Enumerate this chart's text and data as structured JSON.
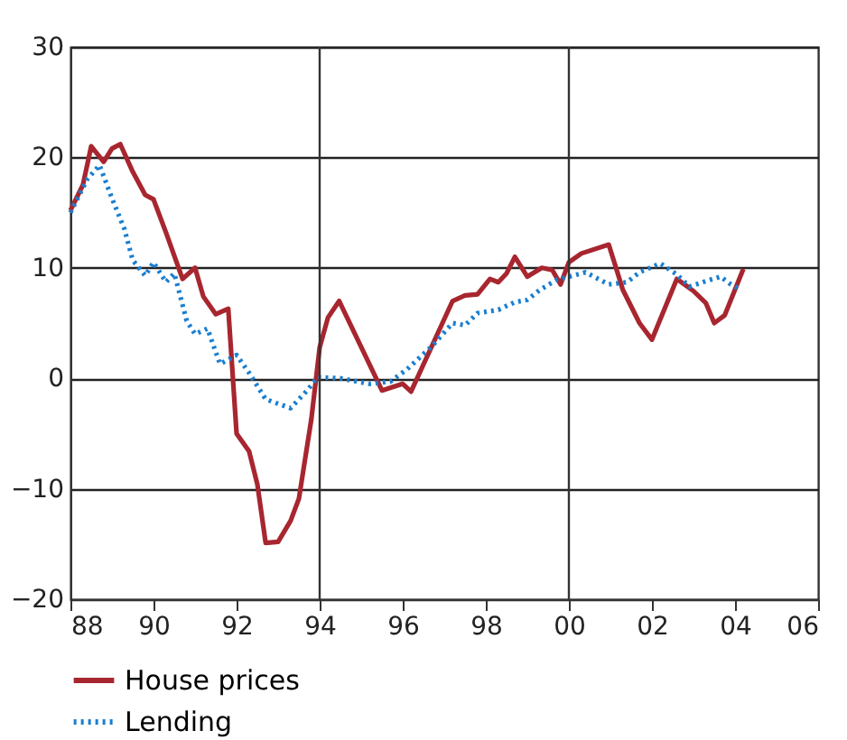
{
  "chart_data": {
    "type": "line",
    "xlim": [
      1988,
      2006
    ],
    "ylim": [
      -20,
      30
    ],
    "xticks": [
      {
        "value": 1988,
        "label": "88"
      },
      {
        "value": 1990,
        "label": "90"
      },
      {
        "value": 1992,
        "label": "92"
      },
      {
        "value": 1994,
        "label": "94"
      },
      {
        "value": 1996,
        "label": "96"
      },
      {
        "value": 1998,
        "label": "98"
      },
      {
        "value": 2000,
        "label": "00"
      },
      {
        "value": 2002,
        "label": "02"
      },
      {
        "value": 2004,
        "label": "04"
      },
      {
        "value": 2006,
        "label": "06"
      }
    ],
    "yticks": [
      -20,
      -10,
      0,
      10,
      20,
      30
    ],
    "grid": "y",
    "legend": "bottom",
    "ref_lines": [
      {
        "axis": "x",
        "value": 1994,
        "color": "#333333"
      },
      {
        "axis": "x",
        "value": 2000,
        "color": "#333333"
      }
    ],
    "series": [
      {
        "name": "House prices",
        "color": "#a8262f",
        "line_style": "solid",
        "x": [
          1988.0,
          1988.3,
          1988.5,
          1988.8,
          1989.0,
          1989.2,
          1989.5,
          1989.8,
          1990.0,
          1990.3,
          1990.7,
          1991.0,
          1991.2,
          1991.5,
          1991.8,
          1992.0,
          1992.3,
          1992.5,
          1992.7,
          1993.0,
          1993.3,
          1993.5,
          1993.8,
          1994.0,
          1994.2,
          1994.47,
          1995.5,
          1996.0,
          1996.2,
          1997.2,
          1997.5,
          1997.8,
          1998.1,
          1998.3,
          1998.5,
          1998.7,
          1999.0,
          1999.35,
          1999.6,
          1999.8,
          2000.0,
          2000.3,
          2000.96,
          2001.3,
          2001.7,
          2002.0,
          2002.6,
          2003.0,
          2003.3,
          2003.5,
          2003.75,
          2004.2
        ],
        "values": [
          15.2,
          17.5,
          21.0,
          19.6,
          20.8,
          21.2,
          18.7,
          16.6,
          16.2,
          13.2,
          9.0,
          10.0,
          7.4,
          5.8,
          6.3,
          -5.0,
          -6.6,
          -9.6,
          -14.9,
          -14.8,
          -12.9,
          -10.9,
          -3.7,
          2.8,
          5.5,
          7.0,
          -1.1,
          -0.5,
          -1.2,
          7.0,
          7.5,
          7.6,
          9.0,
          8.7,
          9.5,
          11.0,
          9.2,
          10.0,
          9.8,
          8.5,
          10.5,
          11.3,
          12.1,
          8.0,
          5.0,
          3.5,
          9.0,
          7.9,
          6.8,
          5.0,
          5.7,
          9.9
        ]
      },
      {
        "name": "Lending",
        "color": "#1a7fd0",
        "line_style": "dotted",
        "x": [
          1988.0,
          1988.4,
          1988.7,
          1989.0,
          1989.3,
          1989.5,
          1989.8,
          1990.0,
          1990.3,
          1990.5,
          1990.8,
          1991.0,
          1991.3,
          1991.6,
          1992.0,
          1992.3,
          1992.7,
          1993.3,
          1993.7,
          1993.95,
          1994.5,
          1995.2,
          1995.7,
          1996.1,
          1996.7,
          1997.2,
          1997.5,
          1997.8,
          1998.3,
          1998.7,
          1999.0,
          1999.3,
          1999.7,
          2000.0,
          2000.4,
          2000.96,
          2001.4,
          2001.7,
          2002.2,
          2002.6,
          2002.9,
          2003.3,
          2003.65,
          2003.9,
          2004.1
        ],
        "values": [
          15.0,
          18.0,
          19.3,
          16.3,
          13.5,
          10.7,
          9.3,
          10.5,
          8.7,
          9.5,
          5.2,
          4.0,
          4.5,
          1.3,
          2.1,
          0.5,
          -1.9,
          -2.7,
          -1.1,
          0.1,
          0.0,
          -0.5,
          -0.3,
          0.8,
          2.9,
          5.0,
          4.8,
          5.9,
          6.2,
          6.9,
          7.1,
          8.0,
          8.9,
          9.2,
          9.6,
          8.5,
          8.7,
          9.6,
          10.4,
          9.4,
          8.3,
          8.8,
          9.2,
          8.5,
          8.1
        ]
      }
    ]
  }
}
